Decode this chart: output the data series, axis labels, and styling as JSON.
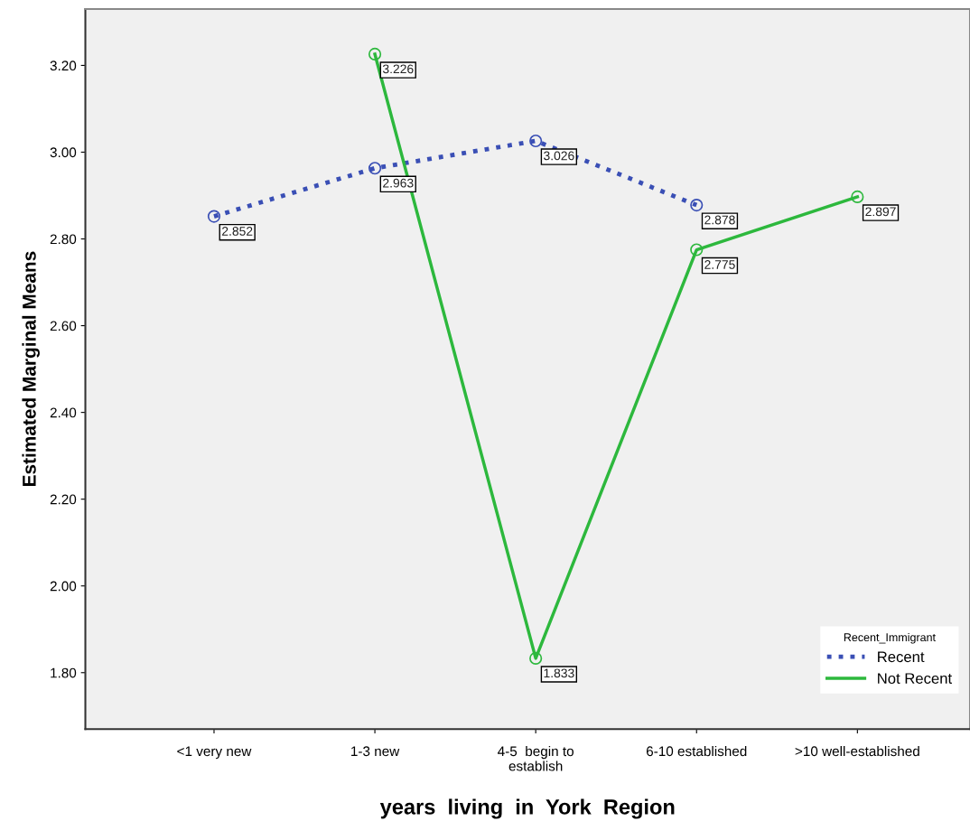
{
  "chart_data": {
    "type": "line",
    "xlabel": "years  living  in  York  Region",
    "ylabel": "Estimated Marginal Means",
    "categories": [
      "<1 very new",
      "1-3 new",
      "4-5  begin to\nestablish",
      "6-10 established",
      ">10 well-established"
    ],
    "series": [
      {
        "name": "Recent",
        "color": "#3a4fb5",
        "line_style": "dotted",
        "values": [
          2.852,
          2.963,
          3.026,
          2.878,
          null
        ]
      },
      {
        "name": "Not Recent",
        "color": "#2db83d",
        "line_style": "solid",
        "values": [
          null,
          3.226,
          1.833,
          2.775,
          2.897
        ]
      }
    ],
    "ylim": [
      1.67,
      3.33
    ],
    "yticks": [
      {
        "value": 1.8,
        "label": "1.80"
      },
      {
        "value": 2.0,
        "label": "2.00"
      },
      {
        "value": 2.2,
        "label": "2.20"
      },
      {
        "value": 2.4,
        "label": "2.40"
      },
      {
        "value": 2.6,
        "label": "2.60"
      },
      {
        "value": 2.8,
        "label": "2.80"
      },
      {
        "value": 3.0,
        "label": "3.00"
      },
      {
        "value": 3.2,
        "label": "3.20"
      }
    ],
    "legend_title": "Recent_Immigrant",
    "legend": "bottom right",
    "marker": "circle",
    "data_labels": true,
    "grid": false
  }
}
